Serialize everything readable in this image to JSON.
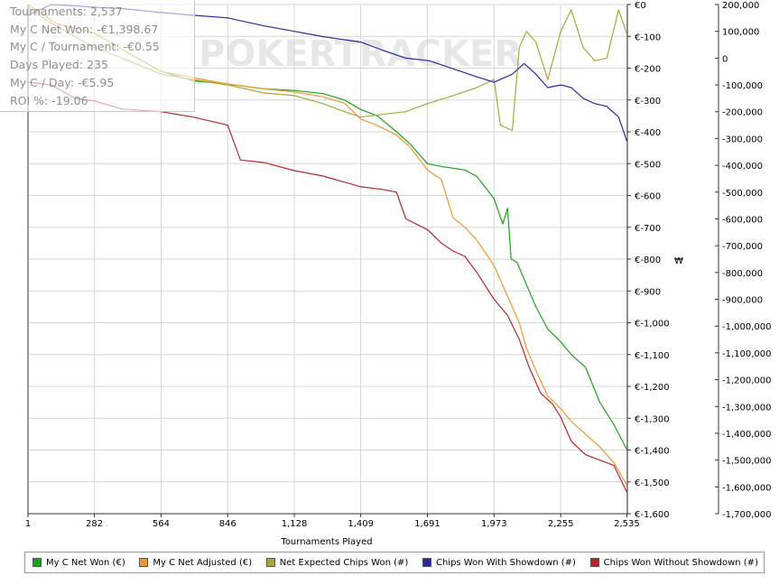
{
  "stats": {
    "lines": [
      "Tournaments: 2,537",
      "My C Net Won: -€1,398.67",
      "My C / Tournament: -€0.55",
      "Days Played: 235",
      "My C / Day: -€5.95",
      "ROI %: -19.06"
    ]
  },
  "watermark": "POKERTRACKER",
  "chart_data": {
    "type": "line",
    "xlabel": "Tournaments Played",
    "ylabel_right_mid": "₩",
    "x_ticks": [
      "1",
      "282",
      "564",
      "846",
      "1,128",
      "1,409",
      "1,691",
      "1,973",
      "2,255",
      "2,535"
    ],
    "x_range": [
      1,
      2537
    ],
    "y_left_ticks": [
      "€0",
      "€-100",
      "€-200",
      "€-300",
      "€-400",
      "€-500",
      "€-600",
      "€-700",
      "€-800",
      "€-900",
      "€-1,000",
      "€-1,100",
      "€-1,200",
      "€-1,300",
      "€-1,400",
      "€-1,500",
      "€-1,600"
    ],
    "y_left_range": [
      -1600,
      0
    ],
    "y_right_ticks": [
      "200,000",
      "100,000",
      "0",
      "-100,000",
      "-200,000",
      "-300,000",
      "-400,000",
      "-500,000",
      "-600,000",
      "-700,000",
      "-800,000",
      "-900,000",
      "-1,000,000",
      "-1,100,000",
      "-1,200,000",
      "-1,300,000",
      "-1,400,000",
      "-1,500,000",
      "-1,600,000",
      "-1,700,000"
    ],
    "y_right_range": [
      -1700000,
      200000
    ],
    "grid": true,
    "legend_position": "bottom",
    "series": [
      {
        "name": "My C Net Won (€)",
        "axis": "left",
        "color": "#1aa31a",
        "points": [
          [
            1,
            0
          ],
          [
            120,
            -60
          ],
          [
            282,
            -90
          ],
          [
            420,
            -150
          ],
          [
            564,
            -210
          ],
          [
            700,
            -240
          ],
          [
            846,
            -250
          ],
          [
            1000,
            -265
          ],
          [
            1128,
            -270
          ],
          [
            1250,
            -280
          ],
          [
            1340,
            -300
          ],
          [
            1409,
            -330
          ],
          [
            1480,
            -350
          ],
          [
            1560,
            -400
          ],
          [
            1620,
            -440
          ],
          [
            1691,
            -500
          ],
          [
            1760,
            -510
          ],
          [
            1850,
            -520
          ],
          [
            1900,
            -540
          ],
          [
            1973,
            -610
          ],
          [
            2010,
            -690
          ],
          [
            2030,
            -640
          ],
          [
            2045,
            -800
          ],
          [
            2070,
            -810
          ],
          [
            2110,
            -880
          ],
          [
            2150,
            -950
          ],
          [
            2200,
            -1020
          ],
          [
            2255,
            -1060
          ],
          [
            2300,
            -1100
          ],
          [
            2360,
            -1140
          ],
          [
            2420,
            -1250
          ],
          [
            2480,
            -1320
          ],
          [
            2535,
            -1399
          ]
        ]
      },
      {
        "name": "My C Net Adjusted (€)",
        "axis": "left",
        "color": "#f0962e",
        "points": [
          [
            1,
            0
          ],
          [
            120,
            -60
          ],
          [
            282,
            -90
          ],
          [
            420,
            -150
          ],
          [
            564,
            -210
          ],
          [
            700,
            -230
          ],
          [
            846,
            -250
          ],
          [
            1000,
            -265
          ],
          [
            1128,
            -275
          ],
          [
            1250,
            -290
          ],
          [
            1340,
            -310
          ],
          [
            1409,
            -360
          ],
          [
            1480,
            -380
          ],
          [
            1560,
            -410
          ],
          [
            1620,
            -450
          ],
          [
            1691,
            -520
          ],
          [
            1750,
            -550
          ],
          [
            1800,
            -670
          ],
          [
            1850,
            -700
          ],
          [
            1900,
            -740
          ],
          [
            1973,
            -820
          ],
          [
            2020,
            -900
          ],
          [
            2050,
            -950
          ],
          [
            2080,
            -1000
          ],
          [
            2110,
            -1080
          ],
          [
            2150,
            -1150
          ],
          [
            2200,
            -1230
          ],
          [
            2255,
            -1270
          ],
          [
            2300,
            -1310
          ],
          [
            2360,
            -1350
          ],
          [
            2420,
            -1390
          ],
          [
            2480,
            -1440
          ],
          [
            2535,
            -1510
          ]
        ]
      },
      {
        "name": "Net Expected Chips Won (#)",
        "axis": "right",
        "color": "#a8a83a",
        "points": [
          [
            1,
            190000
          ],
          [
            100,
            130000
          ],
          [
            200,
            80000
          ],
          [
            282,
            40000
          ],
          [
            400,
            0
          ],
          [
            564,
            -60000
          ],
          [
            700,
            -80000
          ],
          [
            846,
            -100000
          ],
          [
            1000,
            -130000
          ],
          [
            1128,
            -140000
          ],
          [
            1250,
            -170000
          ],
          [
            1340,
            -200000
          ],
          [
            1409,
            -220000
          ],
          [
            1500,
            -210000
          ],
          [
            1600,
            -200000
          ],
          [
            1691,
            -170000
          ],
          [
            1800,
            -140000
          ],
          [
            1900,
            -110000
          ],
          [
            1973,
            -80000
          ],
          [
            2000,
            -250000
          ],
          [
            2050,
            -270000
          ],
          [
            2080,
            40000
          ],
          [
            2110,
            100000
          ],
          [
            2150,
            60000
          ],
          [
            2200,
            -80000
          ],
          [
            2255,
            100000
          ],
          [
            2300,
            180000
          ],
          [
            2350,
            40000
          ],
          [
            2400,
            -10000
          ],
          [
            2450,
            0
          ],
          [
            2500,
            180000
          ],
          [
            2535,
            90000
          ]
        ]
      },
      {
        "name": "Chips Won With Showdown (#)",
        "axis": "right",
        "color": "#2a2aa0",
        "points": [
          [
            1,
            160000
          ],
          [
            100,
            200000
          ],
          [
            200,
            195000
          ],
          [
            282,
            190000
          ],
          [
            400,
            185000
          ],
          [
            564,
            170000
          ],
          [
            700,
            160000
          ],
          [
            846,
            150000
          ],
          [
            1000,
            120000
          ],
          [
            1128,
            100000
          ],
          [
            1250,
            80000
          ],
          [
            1409,
            60000
          ],
          [
            1500,
            30000
          ],
          [
            1600,
            0
          ],
          [
            1700,
            -10000
          ],
          [
            1800,
            -40000
          ],
          [
            1900,
            -70000
          ],
          [
            1973,
            -90000
          ],
          [
            2050,
            -60000
          ],
          [
            2100,
            -20000
          ],
          [
            2150,
            -60000
          ],
          [
            2200,
            -110000
          ],
          [
            2255,
            -100000
          ],
          [
            2300,
            -110000
          ],
          [
            2350,
            -150000
          ],
          [
            2400,
            -170000
          ],
          [
            2450,
            -180000
          ],
          [
            2500,
            -220000
          ],
          [
            2535,
            -310000
          ]
        ]
      },
      {
        "name": "Chips Won Without Showdown (#)",
        "axis": "right",
        "color": "#b8262a",
        "points": [
          [
            1,
            -90000
          ],
          [
            100,
            -100000
          ],
          [
            200,
            -150000
          ],
          [
            282,
            -160000
          ],
          [
            400,
            -190000
          ],
          [
            564,
            -200000
          ],
          [
            700,
            -220000
          ],
          [
            846,
            -250000
          ],
          [
            900,
            -380000
          ],
          [
            1000,
            -390000
          ],
          [
            1128,
            -420000
          ],
          [
            1250,
            -440000
          ],
          [
            1409,
            -480000
          ],
          [
            1500,
            -490000
          ],
          [
            1560,
            -500000
          ],
          [
            1600,
            -600000
          ],
          [
            1691,
            -640000
          ],
          [
            1750,
            -690000
          ],
          [
            1800,
            -720000
          ],
          [
            1850,
            -740000
          ],
          [
            1900,
            -800000
          ],
          [
            1973,
            -900000
          ],
          [
            2030,
            -960000
          ],
          [
            2080,
            -1050000
          ],
          [
            2120,
            -1150000
          ],
          [
            2170,
            -1250000
          ],
          [
            2220,
            -1290000
          ],
          [
            2255,
            -1340000
          ],
          [
            2300,
            -1430000
          ],
          [
            2360,
            -1480000
          ],
          [
            2420,
            -1500000
          ],
          [
            2480,
            -1520000
          ],
          [
            2535,
            -1620000
          ]
        ]
      }
    ]
  },
  "legend": {
    "items": [
      {
        "label": "My C Net Won (€)",
        "color": "#1aa31a"
      },
      {
        "label": "My C Net Adjusted (€)",
        "color": "#f0962e"
      },
      {
        "label": "Net Expected Chips Won (#)",
        "color": "#a8a83a"
      },
      {
        "label": "Chips Won With Showdown (#)",
        "color": "#2a2aa0"
      },
      {
        "label": "Chips Won Without Showdown (#)",
        "color": "#b8262a"
      }
    ]
  }
}
